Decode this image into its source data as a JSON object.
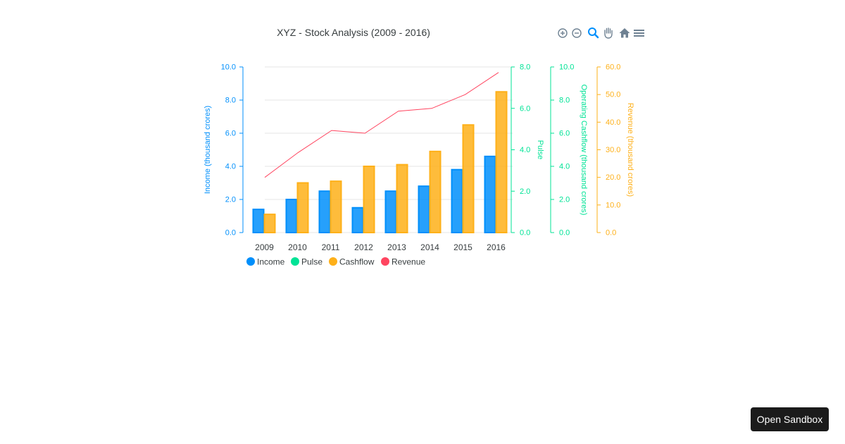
{
  "toolbar": {
    "icons": [
      "zoom-in-icon",
      "zoom-out-icon",
      "selection-zoom-icon",
      "pan-icon",
      "home-icon",
      "menu-icon"
    ],
    "active_color": "#008ffb",
    "idle_color": "#6e8192"
  },
  "sandbox_button": {
    "label": "Open Sandbox"
  },
  "chart_data": {
    "type": "bar",
    "title": "XYZ - Stock Analysis (2009 - 2016)",
    "categories": [
      "2009",
      "2010",
      "2011",
      "2012",
      "2013",
      "2014",
      "2015",
      "2016"
    ],
    "series": [
      {
        "name": "Income",
        "type": "bar",
        "color": "#008ffb",
        "values": [
          1.4,
          2.0,
          2.5,
          1.5,
          2.5,
          2.8,
          3.8,
          4.6
        ]
      },
      {
        "name": "Cashflow",
        "type": "bar",
        "color": "#feb019",
        "values": [
          1.1,
          3.0,
          3.1,
          4.0,
          4.1,
          4.9,
          6.5,
          8.5
        ]
      },
      {
        "name": "Revenue",
        "type": "line",
        "color": "#ff4560",
        "values": [
          20,
          29,
          37,
          36,
          44,
          45,
          50,
          58
        ]
      }
    ],
    "legend": {
      "position": "bottom-left",
      "items": [
        {
          "name": "Income",
          "color": "#008ffb"
        },
        {
          "name": "Pulse",
          "color": "#00e396"
        },
        {
          "name": "Cashflow",
          "color": "#feb019"
        },
        {
          "name": "Revenue",
          "color": "#ff4560"
        }
      ]
    },
    "grid": true,
    "y_axes": [
      {
        "label": "Income (thousand crores)",
        "range": [
          0,
          10
        ],
        "ticks": [
          "0.0",
          "2.0",
          "4.0",
          "6.0",
          "8.0",
          "10.0"
        ],
        "color": "#008ffb",
        "side": "left"
      },
      {
        "label": "Pulse",
        "range": [
          0,
          8
        ],
        "ticks": [
          "0.0",
          "2.0",
          "4.0",
          "6.0",
          "8.0"
        ],
        "color": "#00e396",
        "side": "right"
      },
      {
        "label": "Operating Cashflow (thousand crores)",
        "range": [
          0,
          10
        ],
        "ticks": [
          "0.0",
          "2.0",
          "4.0",
          "6.0",
          "8.0",
          "10.0"
        ],
        "color": "#00e396",
        "side": "right"
      },
      {
        "label": "Revenue (thousand crores)",
        "range": [
          0,
          60
        ],
        "ticks": [
          "0.0",
          "10.0",
          "20.0",
          "30.0",
          "40.0",
          "50.0",
          "60.0"
        ],
        "color": "#feb019",
        "side": "right"
      }
    ]
  }
}
